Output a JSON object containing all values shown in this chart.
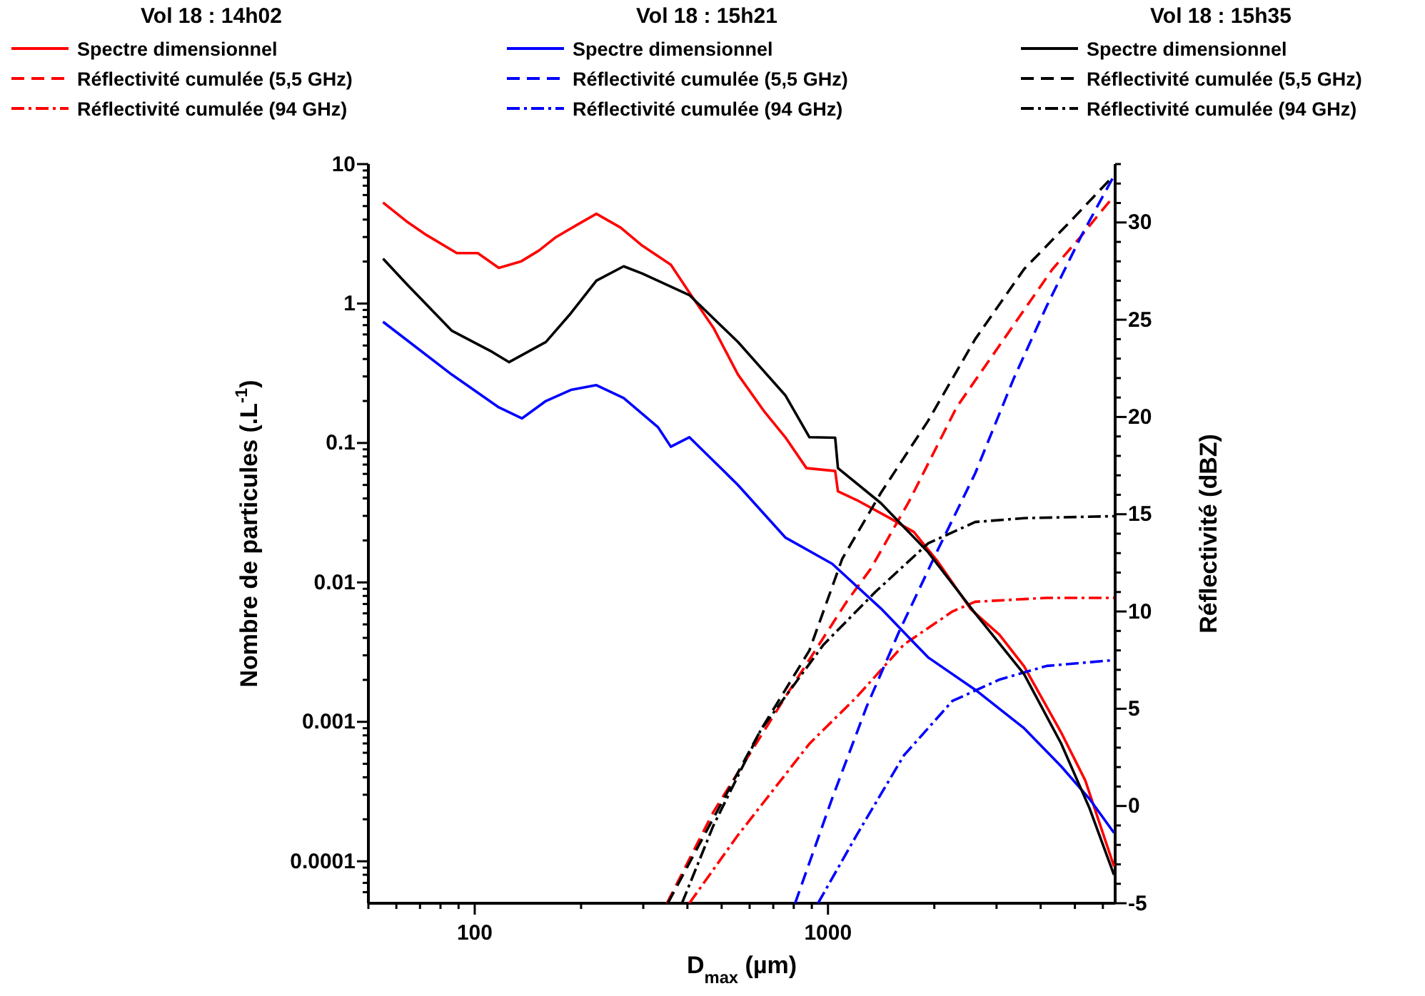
{
  "chart_data": {
    "type": "line",
    "xlabel": "D$_{max}$ (µm)",
    "ylabel": "Nombre de particules (.L$^{-1}$)",
    "y2label": "Réflectivité (dBZ)",
    "annotations": [
      "Vol 18 : 14h02",
      "Vol 18 : 15h21",
      "Vol 18 : 15h35"
    ],
    "log": "xy",
    "legend": "top",
    "grid": false,
    "xlim": [
      50,
      6500
    ],
    "xticks": [
      {
        "value": 50,
        "label": null
      },
      {
        "value": 60,
        "label": null
      },
      {
        "value": 70,
        "label": null
      },
      {
        "value": 80,
        "label": null
      },
      {
        "value": 90,
        "label": null
      },
      100,
      {
        "value": 200,
        "label": null
      },
      {
        "value": 300,
        "label": null
      },
      {
        "value": 400,
        "label": null
      },
      {
        "value": 500,
        "label": null
      },
      {
        "value": 600,
        "label": null
      },
      {
        "value": 700,
        "label": null
      },
      {
        "value": 800,
        "label": null
      },
      {
        "value": 900,
        "label": null
      },
      1000,
      {
        "value": 2000,
        "label": null
      },
      {
        "value": 3000,
        "label": null
      },
      {
        "value": 4000,
        "label": null
      },
      {
        "value": 5000,
        "label": null
      },
      {
        "value": 6000,
        "label": null
      }
    ],
    "ylim": [
      5e-05,
      10
    ],
    "yticks": [
      {
        "value": 6e-05,
        "label": null
      },
      {
        "value": 7e-05,
        "label": null
      },
      {
        "value": 8e-05,
        "label": null
      },
      {
        "value": 9e-05,
        "label": null
      },
      0.0001,
      {
        "value": 0.0002,
        "label": null
      },
      {
        "value": 0.0003,
        "label": null
      },
      {
        "value": 0.0004,
        "label": null
      },
      {
        "value": 0.0005,
        "label": null
      },
      {
        "value": 0.0006,
        "label": null
      },
      {
        "value": 0.0007,
        "label": null
      },
      {
        "value": 0.0008,
        "label": null
      },
      {
        "value": 0.0009,
        "label": null
      },
      0.001,
      {
        "value": 0.002,
        "label": null
      },
      {
        "value": 0.003,
        "label": null
      },
      {
        "value": 0.004,
        "label": null
      },
      {
        "value": 0.005,
        "label": null
      },
      {
        "value": 0.006,
        "label": null
      },
      {
        "value": 0.007,
        "label": null
      },
      {
        "value": 0.008,
        "label": null
      },
      {
        "value": 0.009,
        "label": null
      },
      0.01,
      {
        "value": 0.02,
        "label": null
      },
      {
        "value": 0.03,
        "label": null
      },
      {
        "value": 0.04,
        "label": null
      },
      {
        "value": 0.05,
        "label": null
      },
      {
        "value": 0.06,
        "label": null
      },
      {
        "value": 0.07,
        "label": null
      },
      {
        "value": 0.08,
        "label": null
      },
      {
        "value": 0.09,
        "label": null
      },
      0.1,
      {
        "value": 0.2,
        "label": null
      },
      {
        "value": 0.3,
        "label": null
      },
      {
        "value": 0.4,
        "label": null
      },
      {
        "value": 0.5,
        "label": null
      },
      {
        "value": 0.6,
        "label": null
      },
      {
        "value": 0.7,
        "label": null
      },
      {
        "value": 0.8,
        "label": null
      },
      {
        "value": 0.9,
        "label": null
      },
      1,
      {
        "value": 2,
        "label": null
      },
      {
        "value": 3,
        "label": null
      },
      {
        "value": 4,
        "label": null
      },
      {
        "value": 5,
        "label": null
      },
      {
        "value": 6,
        "label": null
      },
      {
        "value": 7,
        "label": null
      },
      {
        "value": 8,
        "label": null
      },
      {
        "value": 9,
        "label": null
      },
      10
    ],
    "y2lim": [
      -5,
      33
    ],
    "y2ticks": [
      -5,
      {
        "value": -4,
        "label": null
      },
      {
        "value": -3,
        "label": null
      },
      {
        "value": -2,
        "label": null
      },
      {
        "value": -1,
        "label": null
      },
      0,
      {
        "value": 1,
        "label": null
      },
      {
        "value": 2,
        "label": null
      },
      {
        "value": 3,
        "label": null
      },
      {
        "value": 4,
        "label": null
      },
      5,
      {
        "value": 6,
        "label": null
      },
      {
        "value": 7,
        "label": null
      },
      {
        "value": 8,
        "label": null
      },
      {
        "value": 9,
        "label": null
      },
      10,
      {
        "value": 11,
        "label": null
      },
      {
        "value": 12,
        "label": null
      },
      {
        "value": 13,
        "label": null
      },
      {
        "value": 14,
        "label": null
      },
      15,
      {
        "value": 16,
        "label": null
      },
      {
        "value": 17,
        "label": null
      },
      {
        "value": 18,
        "label": null
      },
      {
        "value": 19,
        "label": null
      },
      20,
      {
        "value": 21,
        "label": null
      },
      {
        "value": 22,
        "label": null
      },
      {
        "value": 23,
        "label": null
      },
      {
        "value": 24,
        "label": null
      },
      25,
      {
        "value": 26,
        "label": null
      },
      {
        "value": 27,
        "label": null
      },
      {
        "value": 28,
        "label": null
      },
      {
        "value": 29,
        "label": null
      },
      30,
      {
        "value": 31,
        "label": null
      },
      {
        "value": 32,
        "label": null
      },
      {
        "value": 33,
        "label": null
      }
    ],
    "series": [
      {
        "name": "Spectre dimensionnel",
        "color": "#ff0000",
        "line_style": "solid",
        "x": [
          55,
          64,
          73,
          89,
          102,
          117,
          135,
          152,
          170,
          196,
          221,
          259,
          298,
          359,
          405,
          474,
          556,
          658,
          757,
          869,
          1048,
          1067,
          1205,
          1493,
          1750,
          2050,
          2540,
          3060,
          3590,
          4570,
          5350,
          6450
        ],
        "values": [
          5.3,
          3.9,
          3.1,
          2.3,
          2.3,
          1.8,
          2.0,
          2.4,
          3.0,
          3.7,
          4.4,
          3.5,
          2.6,
          1.9,
          1.2,
          0.67,
          0.31,
          0.17,
          0.11,
          0.066,
          0.063,
          0.045,
          0.039,
          0.029,
          0.023,
          0.014,
          0.0064,
          0.0042,
          0.0025,
          0.00084,
          0.00038,
          9.2e-05
        ]
      },
      {
        "name": "Réflectivité cumulée (5,5 GHz)",
        "color": "#ff0000",
        "line_style": "dashed",
        "axis": "y2",
        "x": [
          350,
          474,
          757,
          1129,
          1322,
          1701,
          2313,
          3147,
          4320,
          5210,
          6340
        ],
        "values": [
          -5,
          -0.3,
          5.6,
          10.5,
          12.2,
          15.7,
          20.5,
          24.0,
          27.6,
          29.3,
          31.2
        ]
      },
      {
        "name": "Réflectivité cumulée (94 GHz)",
        "color": "#ff0000",
        "line_style": "dashdot",
        "axis": "y2",
        "x": [
          405,
          556,
          886,
          1205,
          1640,
          2250,
          2610,
          4160,
          6450
        ],
        "values": [
          -5,
          -1.5,
          3.2,
          5.6,
          8.3,
          10.0,
          10.5,
          10.7,
          10.7
        ]
      },
      {
        "name": "Spectre dimensionnel",
        "color": "#0000ff",
        "line_style": "solid",
        "x": [
          55,
          86,
          117,
          136,
          159,
          187,
          221,
          264,
          330,
          359,
          405,
          556,
          757,
          1028,
          1412,
          1920,
          2610,
          3590,
          4570,
          5500,
          6450
        ],
        "values": [
          0.74,
          0.31,
          0.18,
          0.15,
          0.2,
          0.24,
          0.26,
          0.21,
          0.13,
          0.094,
          0.11,
          0.05,
          0.021,
          0.0136,
          0.0065,
          0.0029,
          0.0017,
          0.0009,
          0.00048,
          0.00028,
          0.00016
        ]
      },
      {
        "name": "Réflectivité cumulée (5,5 GHz)",
        "color": "#0000ff",
        "line_style": "dashed",
        "axis": "y2",
        "x": [
          807,
          1028,
          1286,
          1593,
          2050,
          2610,
          3360,
          4160,
          5210,
          6450
        ],
        "values": [
          -5,
          0.4,
          5.1,
          9.0,
          13.2,
          17.1,
          22.0,
          25.7,
          29.3,
          32.4
        ]
      },
      {
        "name": "Réflectivité cumulée (94 GHz)",
        "color": "#0000ff",
        "line_style": "dashdot",
        "axis": "y2",
        "x": [
          937,
          1205,
          1640,
          2250,
          3060,
          4160,
          6450
        ],
        "values": [
          -5,
          -1.5,
          2.6,
          5.4,
          6.5,
          7.2,
          7.5
        ]
      },
      {
        "name": "Spectre dimensionnel",
        "color": "#000000",
        "line_style": "solid",
        "x": [
          55,
          64,
          86,
          112,
          125,
          159,
          187,
          221,
          264,
          298,
          405,
          556,
          757,
          886,
          1048,
          1067,
          1412,
          1920,
          2610,
          3590,
          4570,
          5500,
          6450
        ],
        "values": [
          2.1,
          1.39,
          0.64,
          0.45,
          0.38,
          0.53,
          0.85,
          1.46,
          1.85,
          1.64,
          1.15,
          0.53,
          0.22,
          0.11,
          0.109,
          0.066,
          0.037,
          0.0165,
          0.006,
          0.0022,
          0.0007,
          0.00024,
          8e-05
        ]
      },
      {
        "name": "Réflectivité cumulée (5,5 GHz)",
        "color": "#000000",
        "line_style": "dashed",
        "axis": "y2",
        "x": [
          352,
          445,
          645,
          886,
          1097,
          1412,
          1920,
          2610,
          3590,
          4880,
          6280
        ],
        "values": [
          -5,
          -1.55,
          3.9,
          8.0,
          12.7,
          16.1,
          19.8,
          24.0,
          27.6,
          30.1,
          32.2
        ]
      },
      {
        "name": "Réflectivité cumulée (94 GHz)",
        "color": "#000000",
        "line_style": "dashdot",
        "axis": "y2",
        "x": [
          386,
          474,
          645,
          972,
          1361,
          1920,
          2610,
          3590,
          6450
        ],
        "values": [
          -5,
          -1.0,
          3.9,
          8.3,
          11.0,
          13.5,
          14.6,
          14.8,
          14.9
        ]
      }
    ]
  }
}
